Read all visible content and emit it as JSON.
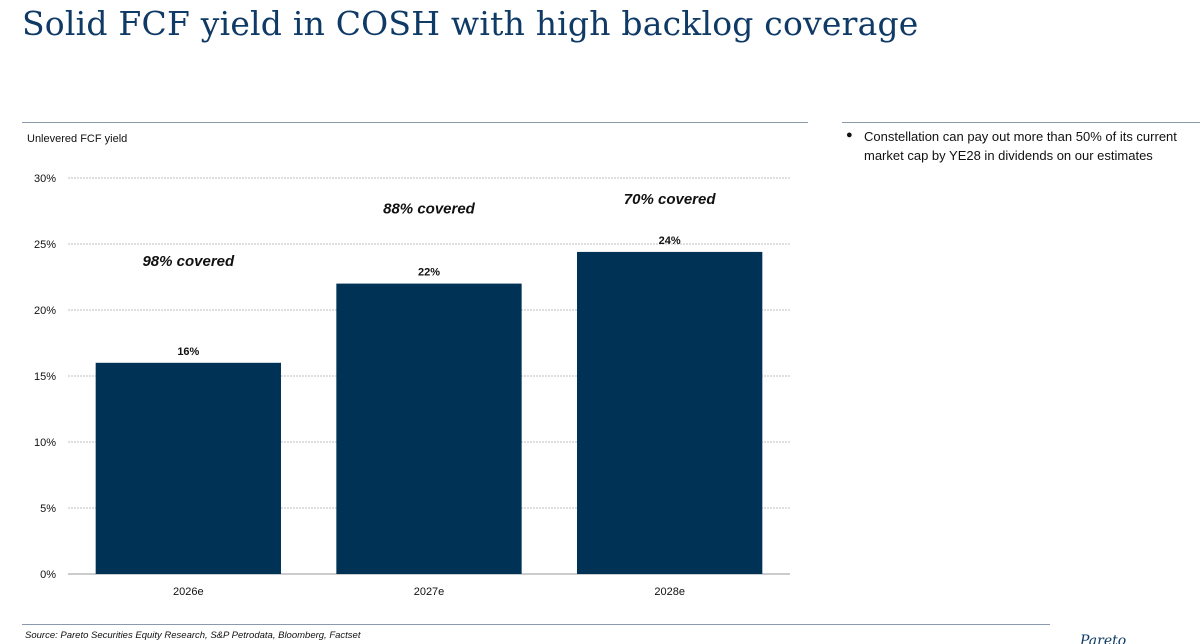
{
  "page": {
    "title": "Solid FCF yield in COSH with high backlog coverage",
    "bullets": [
      "Constellation can pay out more than 50% of its current market cap by YE28 in dividends on our estimates"
    ],
    "source": "Source: Pareto Securities Equity Research, S&P Petrodata, Bloomberg, Factset",
    "logo_text": "Pareto"
  },
  "colors": {
    "bar": "#003256",
    "title": "#0f3a66",
    "grid": "#bfbfbf"
  },
  "chart_data": {
    "type": "bar",
    "title": "",
    "ylabel": "Unlevered FCF yield",
    "xlabel": "",
    "categories": [
      "2026e",
      "2027e",
      "2028e"
    ],
    "values": [
      16,
      22,
      24.4
    ],
    "data_labels": [
      "16%",
      "22%",
      "24%"
    ],
    "annotations": [
      "98% covered",
      "88% covered",
      "70% covered"
    ],
    "ylim": [
      0,
      30
    ],
    "yticks": [
      0,
      5,
      10,
      15,
      20,
      25,
      30
    ],
    "ytick_labels": [
      "0%",
      "5%",
      "10%",
      "15%",
      "20%",
      "25%",
      "30%"
    ],
    "grid": true
  }
}
